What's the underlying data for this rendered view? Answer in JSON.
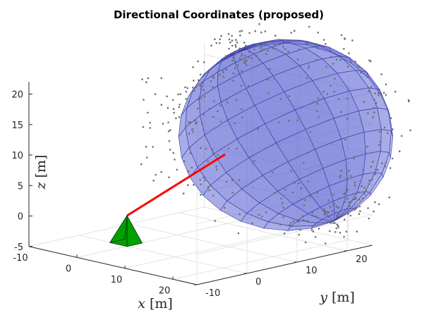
{
  "chart_data": {
    "type": "3d-scatter",
    "title": "Directional Coordinates (proposed)",
    "xlabel_var": "x",
    "xlabel_unit": "[m]",
    "ylabel_var": "y",
    "ylabel_unit": "[m]",
    "zlabel_var": "z",
    "zlabel_unit": "[m]",
    "xlim": [
      -10,
      25
    ],
    "ylim": [
      -10,
      25
    ],
    "zlim": [
      -5,
      22
    ],
    "x_ticks": [
      "-10",
      "0",
      "10",
      "20"
    ],
    "y_ticks": [
      "-10",
      "0",
      "10",
      "20"
    ],
    "z_ticks": [
      "-5",
      "0",
      "5",
      "10",
      "15",
      "20"
    ],
    "grid": true,
    "sensor_position": [
      0,
      0,
      0
    ],
    "direction_line": {
      "from": [
        0,
        0,
        0
      ],
      "to": [
        10,
        10,
        10
      ],
      "color": "#ff0000"
    },
    "surface": {
      "description_color": "#5a64d2",
      "edge_color": "#3c3ca0"
    },
    "scatter_color": "#6e6e6e",
    "sensor_color": "#00a000"
  }
}
